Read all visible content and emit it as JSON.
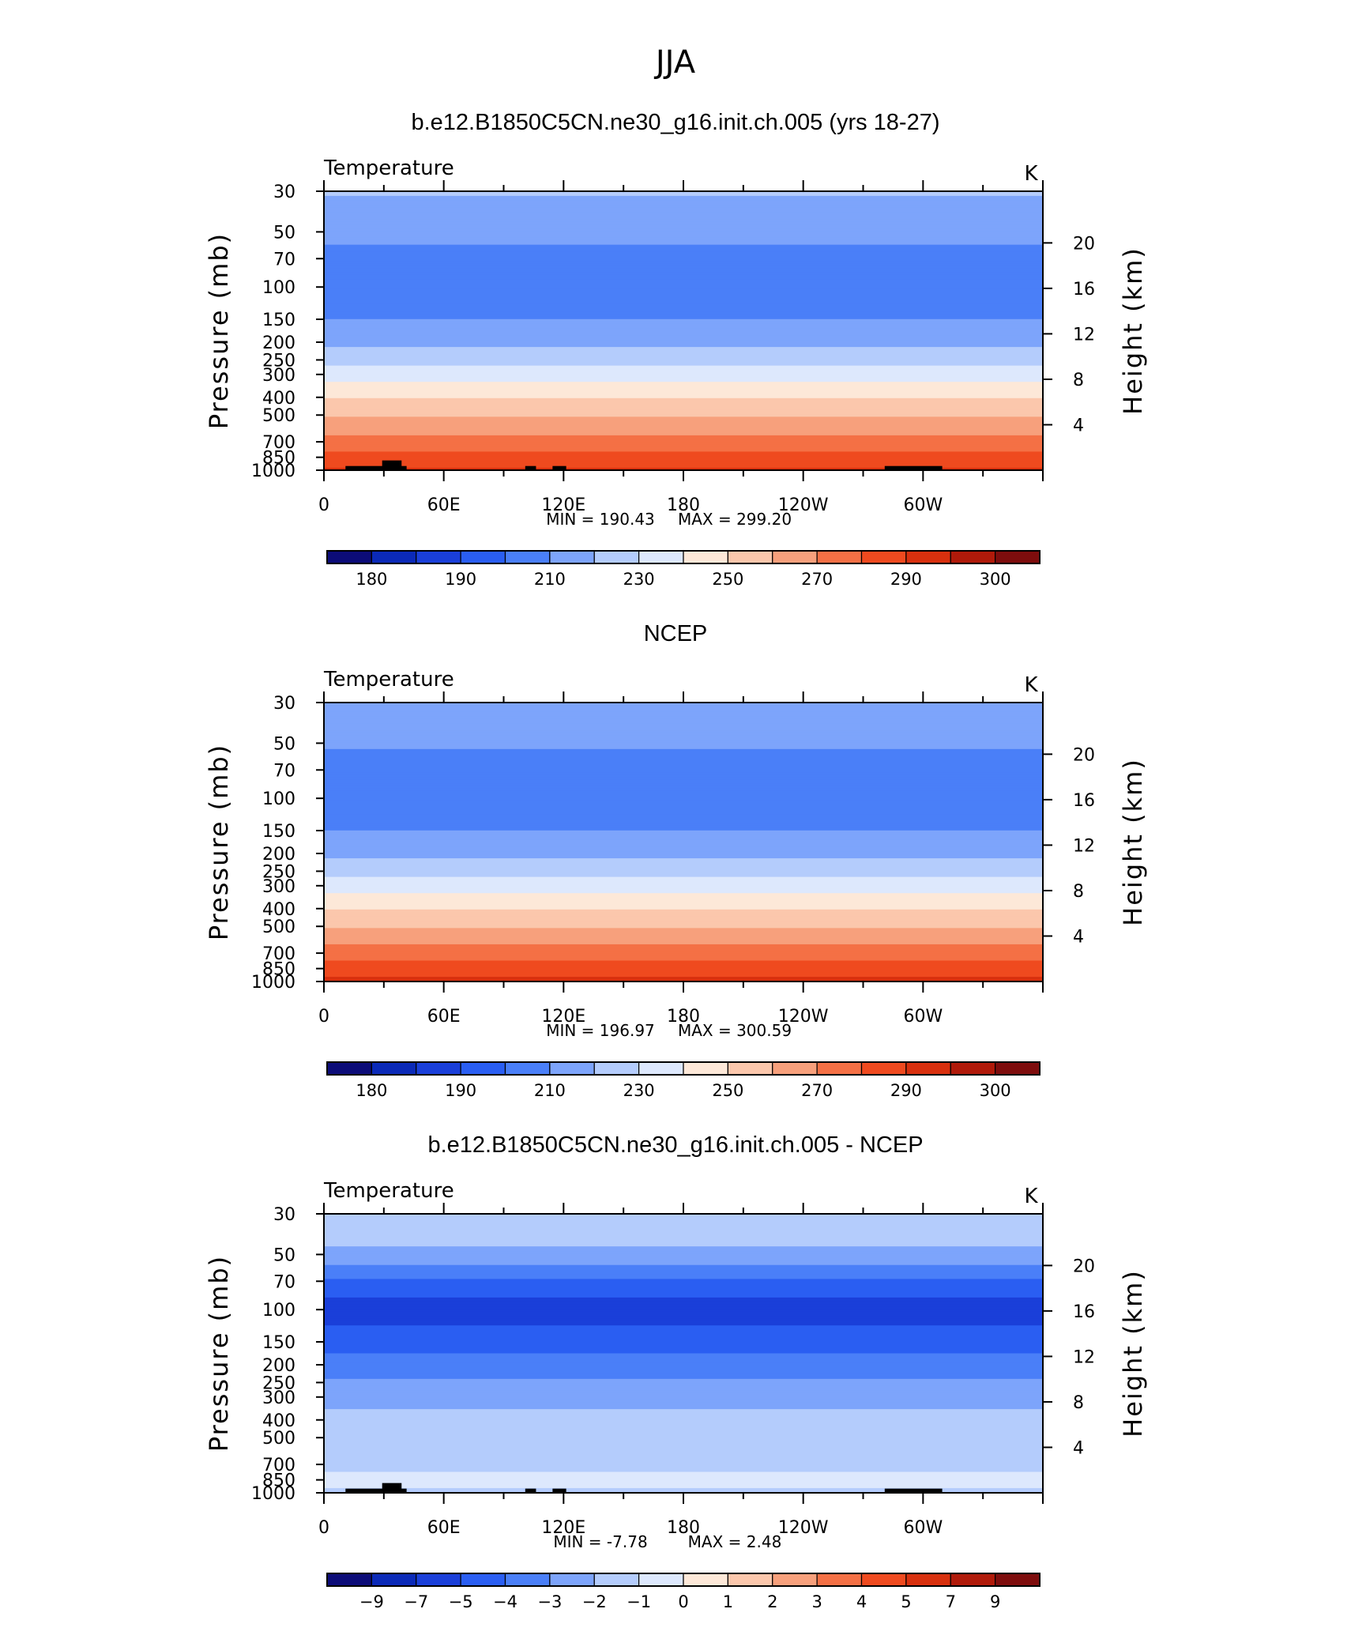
{
  "figure": {
    "title": "JJA"
  },
  "chart_data": [
    {
      "type": "heatmap",
      "title": "b.e12.B1850C5CN.ne30_g16.init.ch.005 (yrs 18-27)",
      "left_title": "Temperature",
      "right_title": "K",
      "ylabel": "Pressure (mb)",
      "ylabel_right": "Height (km)",
      "y_scale": "log",
      "ylim": [
        1000,
        30
      ],
      "yticks": [
        "30",
        "50",
        "70",
        "100",
        "150",
        "200",
        "250",
        "300",
        "400",
        "500",
        "700",
        "850",
        "1000"
      ],
      "y_right_ticks": [
        "20",
        "16",
        "12",
        "8",
        "4"
      ],
      "xlim": [
        0,
        360
      ],
      "xticks": [
        "0",
        "60E",
        "120E",
        "180",
        "120W",
        "60W"
      ],
      "min_label": "MIN = 190.43",
      "max_label": "MAX = 299.20",
      "colorbar_ticks": [
        "180",
        "190",
        "210",
        "230",
        "250",
        "270",
        "290",
        "300"
      ],
      "levels": [
        {
          "p": 30,
          "v": 221
        },
        {
          "p": 50,
          "v": 214
        },
        {
          "p": 70,
          "v": 206
        },
        {
          "p": 100,
          "v": 204
        },
        {
          "p": 150,
          "v": 210
        },
        {
          "p": 200,
          "v": 218
        },
        {
          "p": 250,
          "v": 227
        },
        {
          "p": 300,
          "v": 236
        },
        {
          "p": 400,
          "v": 249
        },
        {
          "p": 500,
          "v": 259
        },
        {
          "p": 700,
          "v": 274
        },
        {
          "p": 850,
          "v": 284
        },
        {
          "p": 1000,
          "v": 292
        }
      ]
    },
    {
      "type": "heatmap",
      "title": "NCEP",
      "left_title": "Temperature",
      "right_title": "K",
      "ylabel": "Pressure (mb)",
      "ylabel_right": "Height (km)",
      "y_scale": "log",
      "ylim": [
        1000,
        30
      ],
      "yticks": [
        "30",
        "50",
        "70",
        "100",
        "150",
        "200",
        "250",
        "300",
        "400",
        "500",
        "700",
        "850",
        "1000"
      ],
      "y_right_ticks": [
        "20",
        "16",
        "12",
        "8",
        "4"
      ],
      "xlim": [
        0,
        360
      ],
      "xticks": [
        "0",
        "60E",
        "120E",
        "180",
        "120W",
        "60W"
      ],
      "min_label": "MIN = 196.97",
      "max_label": "MAX = 300.59",
      "colorbar_ticks": [
        "180",
        "190",
        "210",
        "230",
        "250",
        "270",
        "290",
        "300"
      ],
      "levels": [
        {
          "p": 30,
          "v": 220
        },
        {
          "p": 50,
          "v": 211
        },
        {
          "p": 70,
          "v": 207
        },
        {
          "p": 100,
          "v": 203
        },
        {
          "p": 150,
          "v": 210
        },
        {
          "p": 200,
          "v": 218
        },
        {
          "p": 250,
          "v": 227
        },
        {
          "p": 300,
          "v": 236
        },
        {
          "p": 400,
          "v": 249
        },
        {
          "p": 500,
          "v": 259
        },
        {
          "p": 700,
          "v": 275
        },
        {
          "p": 850,
          "v": 285
        },
        {
          "p": 1000,
          "v": 293
        }
      ]
    },
    {
      "type": "heatmap",
      "title": "b.e12.B1850C5CN.ne30_g16.init.ch.005 - NCEP",
      "left_title": "Temperature",
      "right_title": "K",
      "ylabel": "Pressure (mb)",
      "ylabel_right": "Height (km)",
      "y_scale": "log",
      "ylim": [
        1000,
        30
      ],
      "yticks": [
        "30",
        "50",
        "70",
        "100",
        "150",
        "200",
        "250",
        "300",
        "400",
        "500",
        "700",
        "850",
        "1000"
      ],
      "y_right_ticks": [
        "20",
        "16",
        "12",
        "8",
        "4"
      ],
      "xlim": [
        0,
        360
      ],
      "xticks": [
        "0",
        "60E",
        "120E",
        "180",
        "120W",
        "60W"
      ],
      "min_label": "MIN = -7.78",
      "max_label": "MAX = 2.48",
      "colorbar_ticks": [
        "−9",
        "−7",
        "−5",
        "−4",
        "−3",
        "−2",
        "−1",
        "0",
        "1",
        "2",
        "3",
        "4",
        "5",
        "7",
        "9"
      ],
      "levels": [
        {
          "p": 30,
          "v": -1.2
        },
        {
          "p": 50,
          "v": -2.2
        },
        {
          "p": 70,
          "v": -4.2
        },
        {
          "p": 100,
          "v": -5.6
        },
        {
          "p": 150,
          "v": -4.4
        },
        {
          "p": 200,
          "v": -3.6
        },
        {
          "p": 250,
          "v": -2.8
        },
        {
          "p": 300,
          "v": -2.2
        },
        {
          "p": 400,
          "v": -1.8
        },
        {
          "p": 500,
          "v": -1.6
        },
        {
          "p": 700,
          "v": -1.4
        },
        {
          "p": 850,
          "v": -0.6
        },
        {
          "p": 1000,
          "v": -1.2
        }
      ]
    }
  ],
  "colorbar": {
    "colors": [
      "#0c0c78",
      "#0b2ab8",
      "#1a3fd9",
      "#2a5ef2",
      "#4a7ff8",
      "#7da4fb",
      "#b4ccfc",
      "#dde8fd",
      "#fde8d8",
      "#fbc7ac",
      "#f7a07c",
      "#f47045",
      "#ef4a1f",
      "#d8300e",
      "#b01a0a",
      "#7e0d0d"
    ]
  }
}
